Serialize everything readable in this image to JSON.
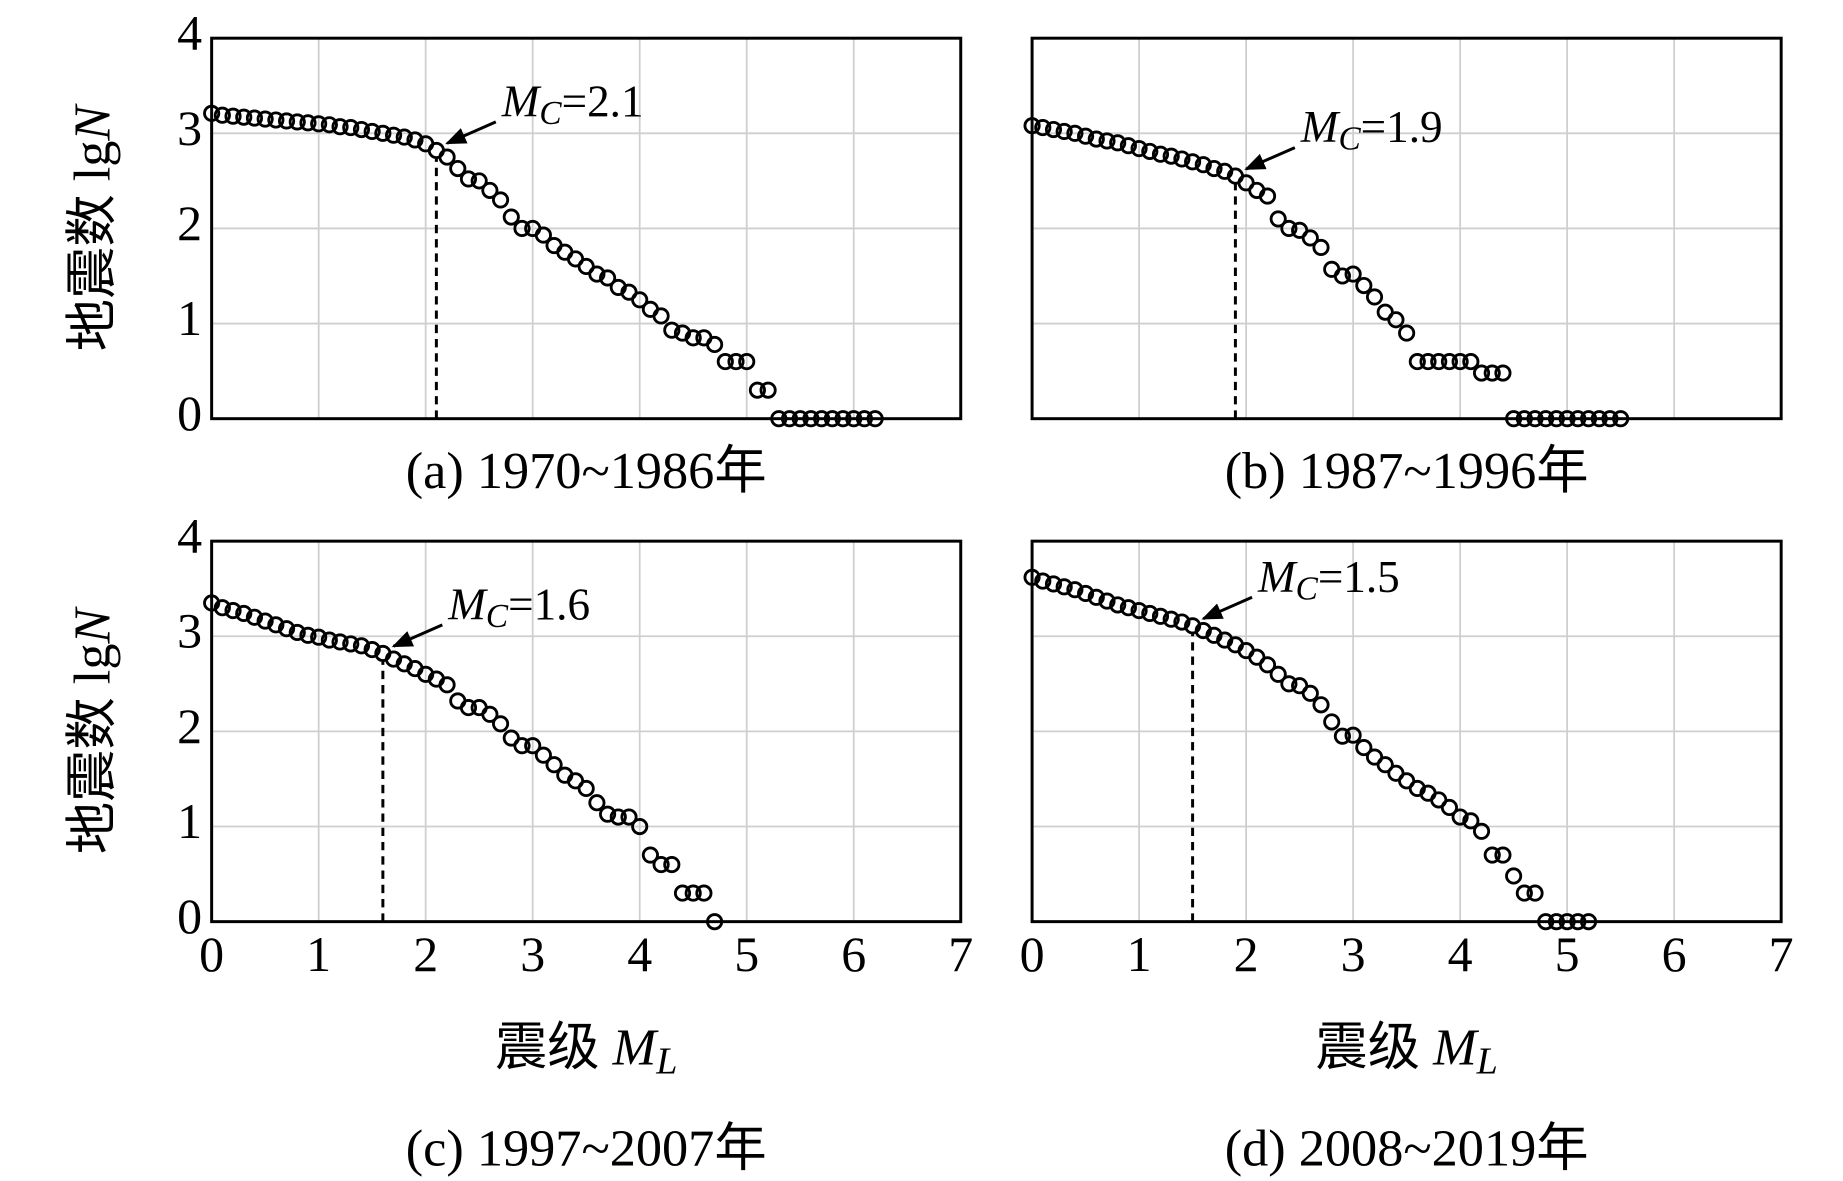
{
  "chart_data": [
    {
      "type": "scatter",
      "title": "(a) 1970~1986年",
      "ylabel": [
        "地震数 lg",
        "N"
      ],
      "x": [
        0,
        0.1,
        0.2,
        0.3,
        0.4,
        0.5,
        0.6,
        0.7,
        0.8,
        0.9,
        1.0,
        1.1,
        1.2,
        1.3,
        1.4,
        1.5,
        1.6,
        1.7,
        1.8,
        1.9,
        2.0,
        2.1,
        2.2,
        2.3,
        2.4,
        2.5,
        2.6,
        2.7,
        2.8,
        2.9,
        3.0,
        3.1,
        3.2,
        3.3,
        3.4,
        3.5,
        3.6,
        3.7,
        3.8,
        3.9,
        4.0,
        4.1,
        4.2,
        4.3,
        4.4,
        4.5,
        4.6,
        4.7,
        4.8,
        4.9,
        5.0,
        5.1,
        5.2,
        5.3,
        5.4,
        5.5,
        5.6,
        5.7,
        5.8,
        5.9,
        6.0,
        6.1,
        6.2
      ],
      "values": [
        3.21,
        3.19,
        3.18,
        3.17,
        3.16,
        3.15,
        3.14,
        3.13,
        3.12,
        3.11,
        3.1,
        3.09,
        3.07,
        3.06,
        3.04,
        3.02,
        3.0,
        2.98,
        2.96,
        2.93,
        2.89,
        2.82,
        2.75,
        2.63,
        2.52,
        2.5,
        2.4,
        2.3,
        2.12,
        2.0,
        2.0,
        1.93,
        1.82,
        1.75,
        1.68,
        1.6,
        1.52,
        1.48,
        1.38,
        1.33,
        1.25,
        1.15,
        1.08,
        0.93,
        0.9,
        0.85,
        0.85,
        0.78,
        0.6,
        0.6,
        0.6,
        0.3,
        0.3,
        0,
        0,
        0,
        0,
        0,
        0,
        0,
        0,
        0,
        0
      ],
      "annotation": {
        "value": 2.1,
        "label": [
          "M",
          "C",
          "=2.1"
        ]
      },
      "xlim": [
        0,
        7
      ],
      "ylim": [
        0,
        4
      ],
      "xticks": [
        0,
        1,
        2,
        3,
        4,
        5,
        6,
        7
      ],
      "yticks": [
        0,
        1,
        2,
        3,
        4
      ],
      "grid": true,
      "color": "#000000"
    },
    {
      "type": "scatter",
      "title": "(b) 1987~1996年",
      "x": [
        0,
        0.1,
        0.2,
        0.3,
        0.4,
        0.5,
        0.6,
        0.7,
        0.8,
        0.9,
        1.0,
        1.1,
        1.2,
        1.3,
        1.4,
        1.5,
        1.6,
        1.7,
        1.8,
        1.9,
        2.0,
        2.1,
        2.2,
        2.3,
        2.4,
        2.5,
        2.6,
        2.7,
        2.8,
        2.9,
        3.0,
        3.1,
        3.2,
        3.3,
        3.4,
        3.5,
        3.6,
        3.7,
        3.8,
        3.9,
        4.0,
        4.1,
        4.2,
        4.3,
        4.4,
        4.5,
        4.6,
        4.7,
        4.8,
        4.9,
        5.0,
        5.1,
        5.2,
        5.3,
        5.4,
        5.5
      ],
      "values": [
        3.08,
        3.06,
        3.04,
        3.02,
        3.0,
        2.97,
        2.94,
        2.92,
        2.9,
        2.87,
        2.84,
        2.81,
        2.78,
        2.76,
        2.73,
        2.7,
        2.67,
        2.63,
        2.6,
        2.55,
        2.48,
        2.4,
        2.34,
        2.1,
        2.0,
        1.98,
        1.9,
        1.8,
        1.57,
        1.5,
        1.52,
        1.4,
        1.28,
        1.12,
        1.04,
        0.9,
        0.6,
        0.6,
        0.6,
        0.6,
        0.6,
        0.6,
        0.48,
        0.48,
        0.48,
        0,
        0,
        0,
        0,
        0,
        0,
        0,
        0,
        0,
        0,
        0
      ],
      "annotation": {
        "value": 1.9,
        "label": [
          "M",
          "C",
          "=1.9"
        ]
      },
      "xlim": [
        0,
        7
      ],
      "ylim": [
        0,
        4
      ],
      "xticks": [
        0,
        1,
        2,
        3,
        4,
        5,
        6,
        7
      ],
      "yticks": [
        0,
        1,
        2,
        3,
        4
      ],
      "grid": true,
      "color": "#000000"
    },
    {
      "type": "scatter",
      "title": "(c) 1997~2007年",
      "ylabel": [
        "地震数 lg",
        "N"
      ],
      "xlabel": [
        "震级 ",
        "M",
        "L"
      ],
      "x": [
        0,
        0.1,
        0.2,
        0.3,
        0.4,
        0.5,
        0.6,
        0.7,
        0.8,
        0.9,
        1.0,
        1.1,
        1.2,
        1.3,
        1.4,
        1.5,
        1.6,
        1.7,
        1.8,
        1.9,
        2.0,
        2.1,
        2.2,
        2.3,
        2.4,
        2.5,
        2.6,
        2.7,
        2.8,
        2.9,
        3.0,
        3.1,
        3.2,
        3.3,
        3.4,
        3.5,
        3.6,
        3.7,
        3.8,
        3.9,
        4.0,
        4.1,
        4.2,
        4.3,
        4.4,
        4.5,
        4.6,
        4.7
      ],
      "values": [
        3.35,
        3.3,
        3.27,
        3.24,
        3.2,
        3.16,
        3.12,
        3.08,
        3.04,
        3.01,
        2.99,
        2.96,
        2.94,
        2.92,
        2.9,
        2.86,
        2.82,
        2.76,
        2.71,
        2.66,
        2.6,
        2.55,
        2.49,
        2.32,
        2.25,
        2.25,
        2.18,
        2.08,
        1.93,
        1.85,
        1.85,
        1.75,
        1.65,
        1.54,
        1.48,
        1.4,
        1.25,
        1.13,
        1.1,
        1.1,
        1.0,
        0.7,
        0.6,
        0.6,
        0.3,
        0.3,
        0.3,
        0
      ],
      "annotation": {
        "value": 1.6,
        "label": [
          "M",
          "C",
          "=1.6"
        ]
      },
      "xlim": [
        0,
        7
      ],
      "ylim": [
        0,
        4
      ],
      "xticks": [
        0,
        1,
        2,
        3,
        4,
        5,
        6,
        7
      ],
      "yticks": [
        0,
        1,
        2,
        3,
        4
      ],
      "grid": true,
      "color": "#000000"
    },
    {
      "type": "scatter",
      "title": "(d) 2008~2019年",
      "xlabel": [
        "震级 ",
        "M",
        "L"
      ],
      "x": [
        0,
        0.1,
        0.2,
        0.3,
        0.4,
        0.5,
        0.6,
        0.7,
        0.8,
        0.9,
        1.0,
        1.1,
        1.2,
        1.3,
        1.4,
        1.5,
        1.6,
        1.7,
        1.8,
        1.9,
        2.0,
        2.1,
        2.2,
        2.3,
        2.4,
        2.5,
        2.6,
        2.7,
        2.8,
        2.9,
        3.0,
        3.1,
        3.2,
        3.3,
        3.4,
        3.5,
        3.6,
        3.7,
        3.8,
        3.9,
        4.0,
        4.1,
        4.2,
        4.3,
        4.4,
        4.5,
        4.6,
        4.7,
        4.8,
        4.9,
        5.0,
        5.1,
        5.2
      ],
      "values": [
        3.62,
        3.58,
        3.55,
        3.52,
        3.49,
        3.45,
        3.41,
        3.37,
        3.33,
        3.3,
        3.27,
        3.24,
        3.21,
        3.18,
        3.15,
        3.11,
        3.06,
        3.01,
        2.96,
        2.91,
        2.85,
        2.78,
        2.7,
        2.6,
        2.5,
        2.48,
        2.4,
        2.28,
        2.1,
        1.95,
        1.96,
        1.83,
        1.73,
        1.65,
        1.56,
        1.48,
        1.4,
        1.35,
        1.28,
        1.2,
        1.1,
        1.06,
        0.95,
        0.7,
        0.7,
        0.48,
        0.3,
        0.3,
        0,
        0,
        0,
        0,
        0
      ],
      "annotation": {
        "value": 1.5,
        "label": [
          "M",
          "C",
          "=1.5"
        ]
      },
      "xlim": [
        0,
        7
      ],
      "ylim": [
        0,
        4
      ],
      "xticks": [
        0,
        1,
        2,
        3,
        4,
        5,
        6,
        7
      ],
      "yticks": [
        0,
        1,
        2,
        3,
        4
      ],
      "grid": true,
      "color": "#000000"
    }
  ]
}
